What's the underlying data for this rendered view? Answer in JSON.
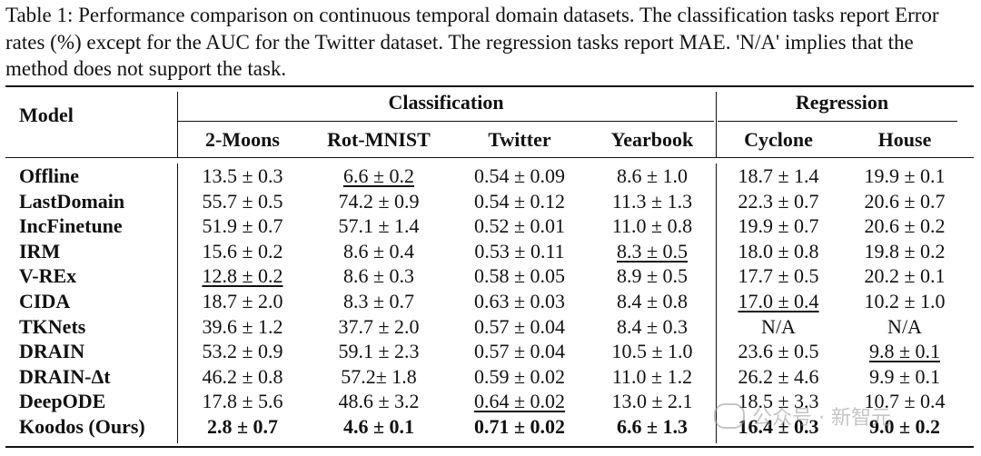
{
  "caption": "Table 1: Performance comparison on continuous temporal domain datasets. The classification tasks report Error rates (%) except for the AUC for the Twitter dataset. The regression tasks report MAE. 'N/A' implies that the method does not support the task.",
  "header": {
    "model": "Model",
    "classification": "Classification",
    "regression": "Regression",
    "columns": [
      "2-Moons",
      "Rot-MNIST",
      "Twitter",
      "Yearbook",
      "Cyclone",
      "House"
    ]
  },
  "rows": [
    {
      "model": "Offline",
      "cells": [
        "13.5 ± 0.3",
        "6.6 ± 0.2",
        "0.54 ± 0.09",
        "8.6 ± 1.0",
        "18.7 ± 1.4",
        "19.9 ± 0.1"
      ]
    },
    {
      "model": "LastDomain",
      "cells": [
        "55.7 ± 0.5",
        "74.2 ± 0.9",
        "0.54 ± 0.12",
        "11.3 ± 1.3",
        "22.3 ± 0.7",
        "20.6 ± 0.7"
      ]
    },
    {
      "model": "IncFinetune",
      "cells": [
        "51.9 ± 0.7",
        "57.1 ± 1.4",
        "0.52 ± 0.01",
        "11.0 ± 0.8",
        "19.9 ± 0.7",
        "20.6 ± 0.2"
      ]
    },
    {
      "model": "IRM",
      "cells": [
        "15.6 ± 0.2",
        "8.6 ± 0.4",
        "0.53 ± 0.11",
        "8.3 ± 0.5",
        "18.0 ± 0.8",
        "19.8 ± 0.2"
      ]
    },
    {
      "model": "V-REx",
      "cells": [
        "12.8 ± 0.2",
        "8.6 ± 0.3",
        "0.58 ± 0.05",
        "8.9 ± 0.5",
        "17.7 ± 0.5",
        "20.2 ± 0.1"
      ]
    },
    {
      "model": "CIDA",
      "cells": [
        "18.7 ± 2.0",
        "8.3 ± 0.7",
        "0.63 ± 0.03",
        "8.4 ± 0.8",
        "17.0 ± 0.4",
        "10.2 ± 1.0"
      ]
    },
    {
      "model": "TKNets",
      "cells": [
        "39.6 ± 1.2",
        "37.7 ± 2.0",
        "0.57 ± 0.04",
        "8.4 ± 0.3",
        "N/A",
        "N/A"
      ]
    },
    {
      "model": "DRAIN",
      "cells": [
        "53.2 ± 0.9",
        "59.1 ± 2.3",
        "0.57 ± 0.04",
        "10.5 ± 1.0",
        "23.6 ± 0.5",
        "9.8 ± 0.1"
      ]
    },
    {
      "model": "DRAIN-Δt",
      "cells": [
        "46.2 ± 0.8",
        "57.2± 1.8",
        "0.59 ± 0.02",
        "11.0 ± 1.2",
        "26.2 ± 4.6",
        "9.9 ± 0.1"
      ]
    },
    {
      "model": "DeepODE",
      "cells": [
        "17.8 ± 5.6",
        "48.6 ± 3.2",
        "0.64 ± 0.02",
        "13.0 ± 2.1",
        "18.5 ± 3.3",
        "10.7 ± 0.4"
      ]
    },
    {
      "model": "Koodos (Ours)",
      "cells": [
        "2.8 ± 0.7",
        "4.6 ± 0.1",
        "0.71 ± 0.02",
        "6.6 ± 1.3",
        "16.4 ± 0.3",
        "9.0 ± 0.2"
      ]
    }
  ],
  "underlined": [
    [
      4,
      0
    ],
    [
      0,
      1
    ],
    [
      9,
      2
    ],
    [
      3,
      3
    ],
    [
      5,
      4
    ],
    [
      7,
      5
    ]
  ],
  "bold_rows": [
    10
  ],
  "watermark": "公众号 · 新智元"
}
